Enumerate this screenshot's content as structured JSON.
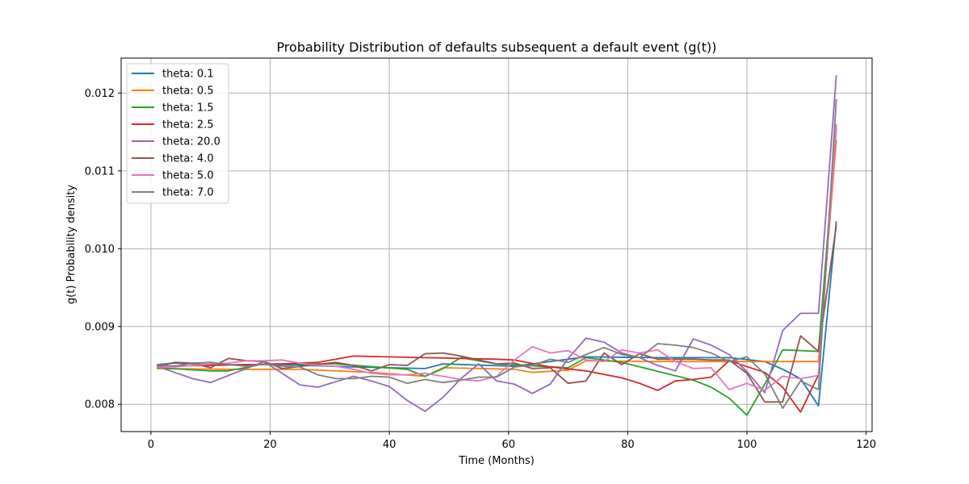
{
  "chart_data": {
    "type": "line",
    "title": "Probability Distribution of defaults subsequent a default event (g(t))",
    "xlabel": "Time (Months)",
    "ylabel": "g(t) Probability density",
    "xlim": [
      -5,
      121
    ],
    "ylim": [
      0.00765,
      0.01245
    ],
    "xticks": [
      0,
      20,
      40,
      60,
      80,
      100,
      120
    ],
    "yticks": [
      0.008,
      0.009,
      0.01,
      0.011,
      0.012
    ],
    "ytick_labels": [
      "0.008",
      "0.009",
      "0.010",
      "0.011",
      "0.012"
    ],
    "grid": true,
    "legend_position": "top-left",
    "series": [
      {
        "name": "theta: 0.1",
        "color": "#1f77b4",
        "points": [
          [
            1,
            0.00851
          ],
          [
            4,
            0.00853
          ],
          [
            10,
            0.00851
          ],
          [
            22,
            0.00851
          ],
          [
            34,
            0.00848
          ],
          [
            46,
            0.00846
          ],
          [
            49,
            0.00852
          ],
          [
            61,
            0.00849
          ],
          [
            73,
            0.00861
          ],
          [
            85,
            0.0086
          ],
          [
            97,
            0.0086
          ],
          [
            103,
            0.00855
          ],
          [
            106,
            0.00845
          ],
          [
            109,
            0.00833
          ],
          [
            112,
            0.00798
          ],
          [
            115,
            0.01035
          ]
        ]
      },
      {
        "name": "theta: 0.5",
        "color": "#ff7f0e",
        "points": [
          [
            1,
            0.00846
          ],
          [
            13,
            0.00845
          ],
          [
            25,
            0.00845
          ],
          [
            37,
            0.00841
          ],
          [
            46,
            0.00836
          ],
          [
            49,
            0.00847
          ],
          [
            61,
            0.00845
          ],
          [
            64,
            0.00841
          ],
          [
            70,
            0.00844
          ],
          [
            73,
            0.00856
          ],
          [
            85,
            0.00855
          ],
          [
            97,
            0.00855
          ],
          [
            112,
            0.00855
          ],
          [
            115,
            0.0114
          ]
        ]
      },
      {
        "name": "theta: 1.5",
        "color": "#2ca02c",
        "points": [
          [
            1,
            0.00847
          ],
          [
            10,
            0.00843
          ],
          [
            13,
            0.00843
          ],
          [
            19,
            0.00852
          ],
          [
            31,
            0.00852
          ],
          [
            43,
            0.00845
          ],
          [
            46,
            0.00836
          ],
          [
            49,
            0.00846
          ],
          [
            52,
            0.0086
          ],
          [
            58,
            0.00852
          ],
          [
            70,
            0.00847
          ],
          [
            73,
            0.0086
          ],
          [
            79,
            0.00854
          ],
          [
            91,
            0.00831
          ],
          [
            94,
            0.00822
          ],
          [
            97,
            0.00808
          ],
          [
            100,
            0.00786
          ],
          [
            103,
            0.00826
          ],
          [
            106,
            0.0087
          ],
          [
            112,
            0.00868
          ],
          [
            115,
            0.01155
          ]
        ]
      },
      {
        "name": "theta: 2.5",
        "color": "#d62728",
        "points": [
          [
            1,
            0.00849
          ],
          [
            10,
            0.0085
          ],
          [
            22,
            0.00852
          ],
          [
            28,
            0.00854
          ],
          [
            34,
            0.00862
          ],
          [
            46,
            0.0086
          ],
          [
            58,
            0.00858
          ],
          [
            61,
            0.00857
          ],
          [
            67,
            0.00848
          ],
          [
            73,
            0.00843
          ],
          [
            79,
            0.00834
          ],
          [
            82,
            0.00827
          ],
          [
            85,
            0.00818
          ],
          [
            88,
            0.0083
          ],
          [
            91,
            0.00832
          ],
          [
            94,
            0.00835
          ],
          [
            97,
            0.00856
          ],
          [
            103,
            0.00841
          ],
          [
            106,
            0.00822
          ],
          [
            109,
            0.0079
          ],
          [
            112,
            0.00838
          ],
          [
            115,
            0.0116
          ]
        ]
      },
      {
        "name": "theta: 20.0",
        "color": "#9467bd",
        "points": [
          [
            1,
            0.00849
          ],
          [
            4,
            0.00841
          ],
          [
            7,
            0.00833
          ],
          [
            10,
            0.00828
          ],
          [
            13,
            0.00837
          ],
          [
            19,
            0.00855
          ],
          [
            25,
            0.00825
          ],
          [
            28,
            0.00822
          ],
          [
            31,
            0.00829
          ],
          [
            34,
            0.00836
          ],
          [
            37,
            0.0083
          ],
          [
            40,
            0.00823
          ],
          [
            43,
            0.00805
          ],
          [
            46,
            0.00791
          ],
          [
            49,
            0.00809
          ],
          [
            52,
            0.00833
          ],
          [
            55,
            0.00852
          ],
          [
            58,
            0.0083
          ],
          [
            61,
            0.00826
          ],
          [
            64,
            0.00814
          ],
          [
            67,
            0.00826
          ],
          [
            70,
            0.00859
          ],
          [
            73,
            0.00885
          ],
          [
            76,
            0.0088
          ],
          [
            79,
            0.00866
          ],
          [
            82,
            0.0086
          ],
          [
            85,
            0.0085
          ],
          [
            88,
            0.00843
          ],
          [
            91,
            0.00884
          ],
          [
            94,
            0.00876
          ],
          [
            97,
            0.00864
          ],
          [
            100,
            0.00842
          ],
          [
            103,
            0.00815
          ],
          [
            106,
            0.00895
          ],
          [
            109,
            0.00917
          ],
          [
            112,
            0.00917
          ],
          [
            115,
            0.01223
          ]
        ]
      },
      {
        "name": "theta: 4.0",
        "color": "#8c564b",
        "points": [
          [
            1,
            0.00849
          ],
          [
            4,
            0.00854
          ],
          [
            7,
            0.00853
          ],
          [
            10,
            0.00847
          ],
          [
            13,
            0.00859
          ],
          [
            16,
            0.00856
          ],
          [
            19,
            0.00855
          ],
          [
            22,
            0.00846
          ],
          [
            31,
            0.00854
          ],
          [
            34,
            0.0085
          ],
          [
            37,
            0.00843
          ],
          [
            40,
            0.00851
          ],
          [
            43,
            0.0085
          ],
          [
            46,
            0.00865
          ],
          [
            49,
            0.00866
          ],
          [
            52,
            0.00862
          ],
          [
            55,
            0.00857
          ],
          [
            58,
            0.00852
          ],
          [
            61,
            0.00853
          ],
          [
            64,
            0.00846
          ],
          [
            67,
            0.00847
          ],
          [
            70,
            0.00827
          ],
          [
            73,
            0.0083
          ],
          [
            76,
            0.00866
          ],
          [
            79,
            0.00851
          ],
          [
            82,
            0.00865
          ],
          [
            85,
            0.00858
          ],
          [
            88,
            0.00858
          ],
          [
            91,
            0.00858
          ],
          [
            94,
            0.00857
          ],
          [
            97,
            0.00857
          ],
          [
            100,
            0.0084
          ],
          [
            103,
            0.00803
          ],
          [
            106,
            0.00803
          ],
          [
            109,
            0.00888
          ],
          [
            112,
            0.00868
          ],
          [
            115,
            0.0103
          ]
        ]
      },
      {
        "name": "theta: 5.0",
        "color": "#e377c2",
        "points": [
          [
            1,
            0.00848
          ],
          [
            4,
            0.00848
          ],
          [
            7,
            0.0085
          ],
          [
            10,
            0.00852
          ],
          [
            13,
            0.00853
          ],
          [
            16,
            0.00856
          ],
          [
            19,
            0.00856
          ],
          [
            22,
            0.00857
          ],
          [
            25,
            0.00853
          ],
          [
            28,
            0.0085
          ],
          [
            31,
            0.00849
          ],
          [
            34,
            0.00845
          ],
          [
            37,
            0.0084
          ],
          [
            40,
            0.00838
          ],
          [
            43,
            0.00838
          ],
          [
            46,
            0.0084
          ],
          [
            49,
            0.00836
          ],
          [
            52,
            0.00832
          ],
          [
            55,
            0.0083
          ],
          [
            58,
            0.00836
          ],
          [
            61,
            0.00857
          ],
          [
            64,
            0.00874
          ],
          [
            67,
            0.00866
          ],
          [
            70,
            0.00869
          ],
          [
            73,
            0.00857
          ],
          [
            76,
            0.00855
          ],
          [
            79,
            0.0087
          ],
          [
            82,
            0.00866
          ],
          [
            85,
            0.0087
          ],
          [
            88,
            0.00855
          ],
          [
            91,
            0.00846
          ],
          [
            94,
            0.00847
          ],
          [
            97,
            0.00819
          ],
          [
            100,
            0.00827
          ],
          [
            103,
            0.00818
          ],
          [
            106,
            0.00836
          ],
          [
            109,
            0.00833
          ],
          [
            112,
            0.00837
          ],
          [
            115,
            0.0116
          ]
        ]
      },
      {
        "name": "theta: 7.0",
        "color": "#7f7f7f",
        "points": [
          [
            1,
            0.00851
          ],
          [
            4,
            0.00849
          ],
          [
            7,
            0.00853
          ],
          [
            10,
            0.00854
          ],
          [
            13,
            0.00851
          ],
          [
            16,
            0.00849
          ],
          [
            19,
            0.00852
          ],
          [
            22,
            0.00849
          ],
          [
            25,
            0.00848
          ],
          [
            28,
            0.00838
          ],
          [
            31,
            0.00833
          ],
          [
            34,
            0.00833
          ],
          [
            37,
            0.00836
          ],
          [
            40,
            0.00835
          ],
          [
            43,
            0.00827
          ],
          [
            46,
            0.00832
          ],
          [
            49,
            0.00828
          ],
          [
            52,
            0.00831
          ],
          [
            55,
            0.00835
          ],
          [
            58,
            0.00835
          ],
          [
            61,
            0.00848
          ],
          [
            64,
            0.0085
          ],
          [
            67,
            0.00858
          ],
          [
            70,
            0.00854
          ],
          [
            73,
            0.00864
          ],
          [
            76,
            0.00873
          ],
          [
            79,
            0.00864
          ],
          [
            82,
            0.0086
          ],
          [
            85,
            0.00878
          ],
          [
            88,
            0.00876
          ],
          [
            91,
            0.00873
          ],
          [
            94,
            0.00866
          ],
          [
            97,
            0.00855
          ],
          [
            100,
            0.00861
          ],
          [
            103,
            0.00839
          ],
          [
            106,
            0.00795
          ],
          [
            109,
            0.0083
          ],
          [
            112,
            0.00819
          ],
          [
            115,
            0.01192
          ]
        ]
      }
    ]
  }
}
